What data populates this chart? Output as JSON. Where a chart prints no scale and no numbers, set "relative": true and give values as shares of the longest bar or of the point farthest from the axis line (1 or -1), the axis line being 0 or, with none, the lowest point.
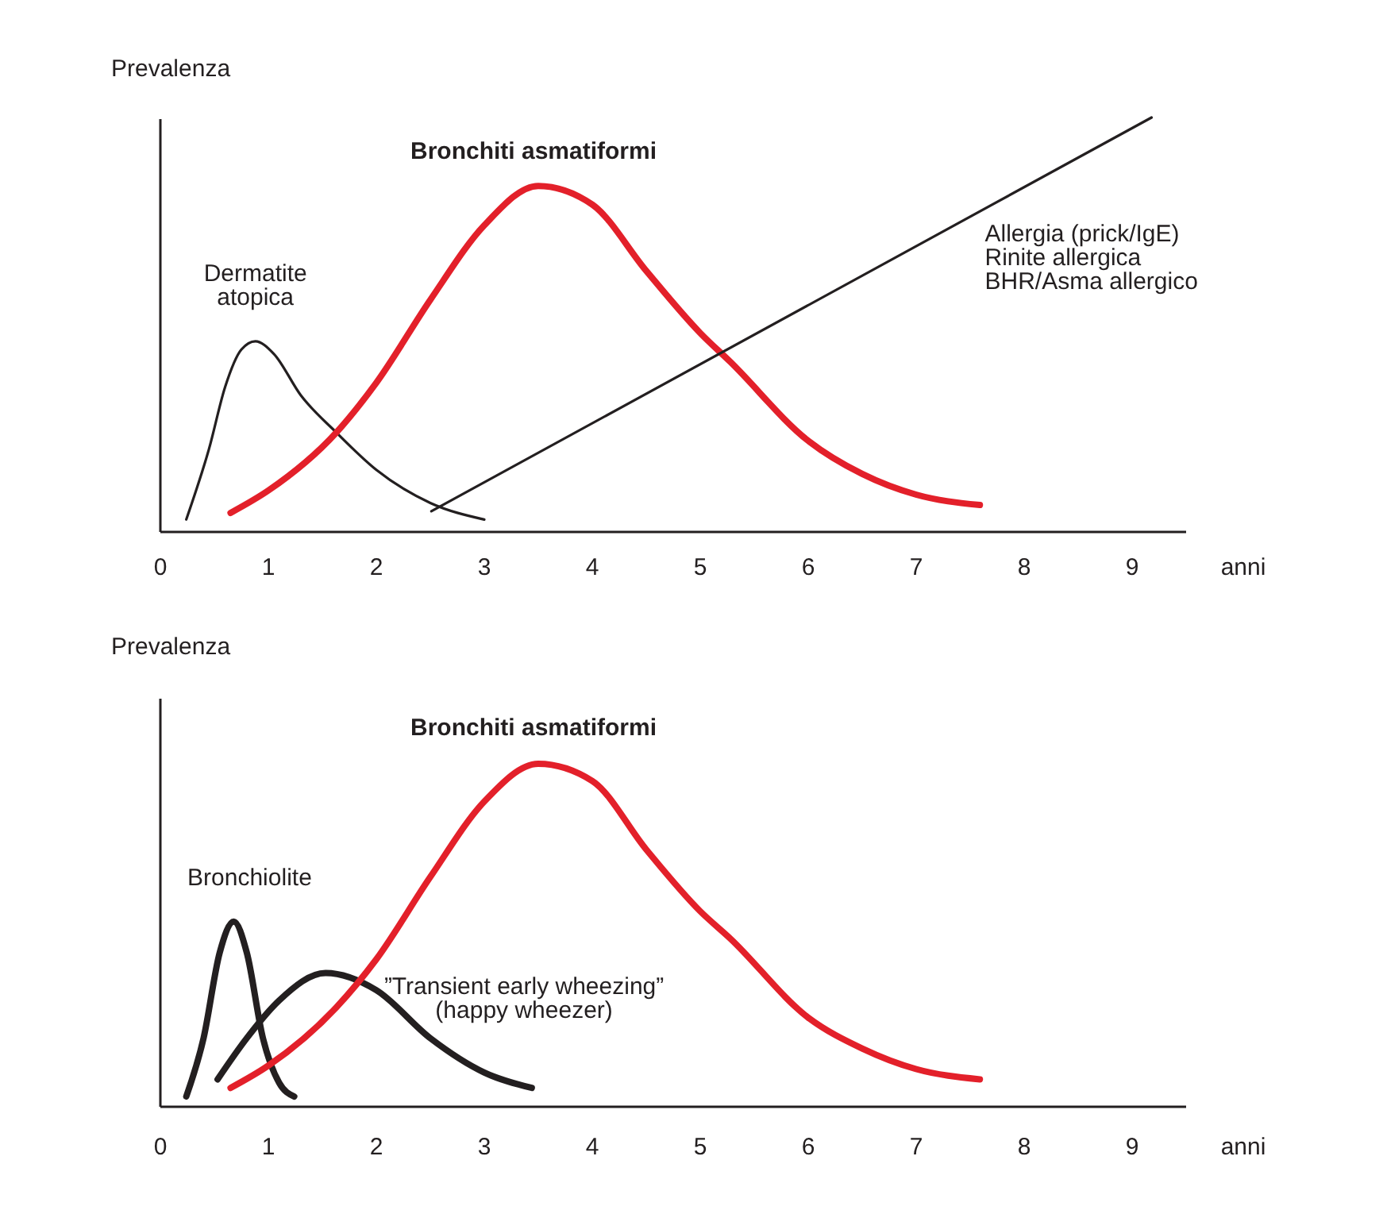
{
  "chart_data": [
    {
      "type": "line",
      "relative": true,
      "ylabel": "Prevalenza",
      "xlabel": "anni",
      "xlim": [
        0,
        9.5
      ],
      "xticks": [
        0,
        1,
        2,
        3,
        4,
        5,
        6,
        7,
        8,
        9
      ],
      "series": [
        {
          "name": "Dermatite\natopica",
          "color": "#231f20",
          "x": [
            0.24,
            0.45,
            0.6,
            0.75,
            0.88,
            1.05,
            1.3,
            1.63,
            2.0,
            2.5,
            3.0
          ],
          "values": [
            0.03,
            0.2,
            0.35,
            0.44,
            0.46,
            0.43,
            0.33,
            0.24,
            0.15,
            0.07,
            0.03
          ]
        },
        {
          "name": "Bronchiti asmatiformi",
          "color": "#e3202a",
          "x": [
            0.65,
            1.0,
            1.63,
            2.0,
            2.5,
            3.0,
            3.5,
            4.0,
            4.5,
            5.0,
            5.28,
            6.0,
            6.5,
            7.0,
            7.59
          ],
          "values": [
            0.046,
            0.1,
            0.24,
            0.36,
            0.56,
            0.74,
            0.835,
            0.79,
            0.63,
            0.48,
            0.41,
            0.22,
            0.14,
            0.09,
            0.065
          ]
        },
        {
          "name": "Allergia (prick/IgE)\nRinite allergica\nBHR/Asma allergico",
          "color": "#231f20",
          "x": [
            2.51,
            9.18
          ],
          "values": [
            0.05,
            1.0
          ]
        }
      ]
    },
    {
      "type": "line",
      "relative": true,
      "ylabel": "Prevalenza",
      "xlabel": "anni",
      "xlim": [
        0,
        9.5
      ],
      "xticks": [
        0,
        1,
        2,
        3,
        4,
        5,
        6,
        7,
        8,
        9
      ],
      "series": [
        {
          "name": "Bronchiolite",
          "color": "#231f20",
          "x": [
            0.24,
            0.4,
            0.55,
            0.68,
            0.8,
            0.95,
            1.1,
            1.24
          ],
          "values": [
            0.03,
            0.2,
            0.45,
            0.54,
            0.45,
            0.2,
            0.07,
            0.03
          ]
        },
        {
          "name": "”Transient early wheezing”\n(happy wheezer)",
          "color": "#231f20",
          "x": [
            0.53,
            0.8,
            1.1,
            1.53,
            2.0,
            2.5,
            3.0,
            3.44
          ],
          "values": [
            0.08,
            0.2,
            0.31,
            0.39,
            0.34,
            0.2,
            0.1,
            0.055
          ]
        },
        {
          "name": "Bronchiti asmatiformi",
          "color": "#e3202a",
          "x": [
            0.65,
            1.0,
            1.63,
            2.0,
            2.5,
            3.0,
            3.5,
            4.0,
            4.5,
            5.0,
            5.28,
            6.0,
            6.5,
            7.0,
            7.59
          ],
          "values": [
            0.055,
            0.12,
            0.29,
            0.43,
            0.67,
            0.89,
            1.0,
            0.95,
            0.75,
            0.57,
            0.49,
            0.26,
            0.17,
            0.11,
            0.08
          ]
        }
      ]
    }
  ]
}
